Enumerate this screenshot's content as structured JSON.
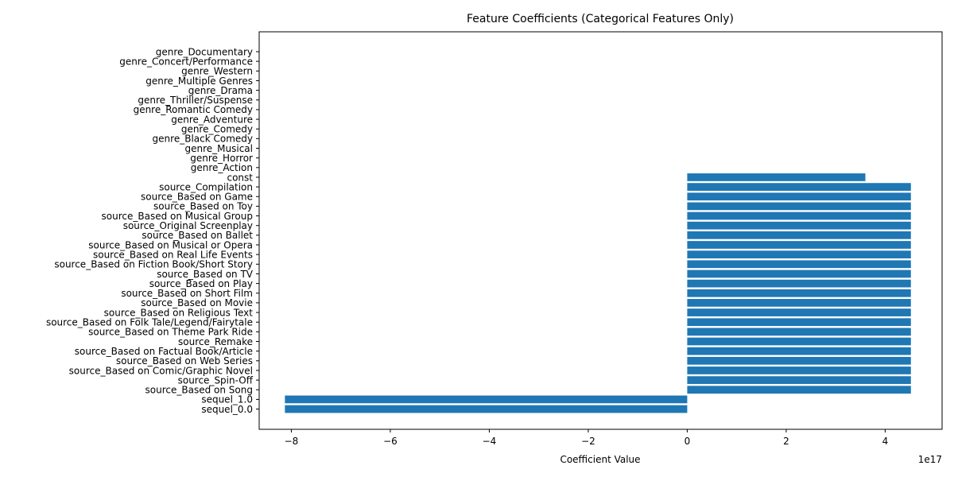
{
  "chart_data": {
    "type": "bar",
    "orientation": "horizontal",
    "title": "Feature Coefficients (Categorical Features Only)",
    "xlabel": "Coefficient Value",
    "ylabel": "",
    "x_scale_label": "1e17",
    "x_scale": 1e+17,
    "xlim": [
      -8.65,
      5.15
    ],
    "xticks": [
      -8,
      -6,
      -4,
      -2,
      0,
      2,
      4
    ],
    "xtick_labels": [
      "−8",
      "−6",
      "−4",
      "−2",
      "0",
      "2",
      "4"
    ],
    "grid": false,
    "legend": "none",
    "bar_color": "#1f77b4",
    "categories": [
      "genre_Documentary",
      "genre_Concert/Performance",
      "genre_Western",
      "genre_Multiple Genres",
      "genre_Drama",
      "genre_Thriller/Suspense",
      "genre_Romantic Comedy",
      "genre_Adventure",
      "genre_Comedy",
      "genre_Black Comedy",
      "genre_Musical",
      "genre_Horror",
      "genre_Action",
      "const",
      "source_Compilation",
      "source_Based on Game",
      "source_Based on Toy",
      "source_Based on Musical Group",
      "source_Original Screenplay",
      "source_Based on Ballet",
      "source_Based on Musical or Opera",
      "source_Based on Real Life Events",
      "source_Based on Fiction Book/Short Story",
      "source_Based on TV",
      "source_Based on Play",
      "source_Based on Short Film",
      "source_Based on Movie",
      "source_Based on Religious Text",
      "source_Based on Folk Tale/Legend/Fairytale",
      "source_Based on Theme Park Ride",
      "source_Remake",
      "source_Based on Factual Book/Article",
      "source_Based on Web Series",
      "source_Based on Comic/Graphic Novel",
      "source_Spin-Off",
      "source_Based on Song",
      "sequel_1.0",
      "sequel_0.0"
    ],
    "values": [
      0,
      0,
      0,
      0,
      0,
      0,
      0,
      0,
      0,
      0,
      0,
      0,
      0,
      3.6,
      4.52,
      4.52,
      4.52,
      4.52,
      4.52,
      4.52,
      4.52,
      4.52,
      4.52,
      4.52,
      4.52,
      4.52,
      4.52,
      4.52,
      4.52,
      4.52,
      4.52,
      4.52,
      4.52,
      4.52,
      4.52,
      4.52,
      -8.13,
      -8.13
    ]
  }
}
